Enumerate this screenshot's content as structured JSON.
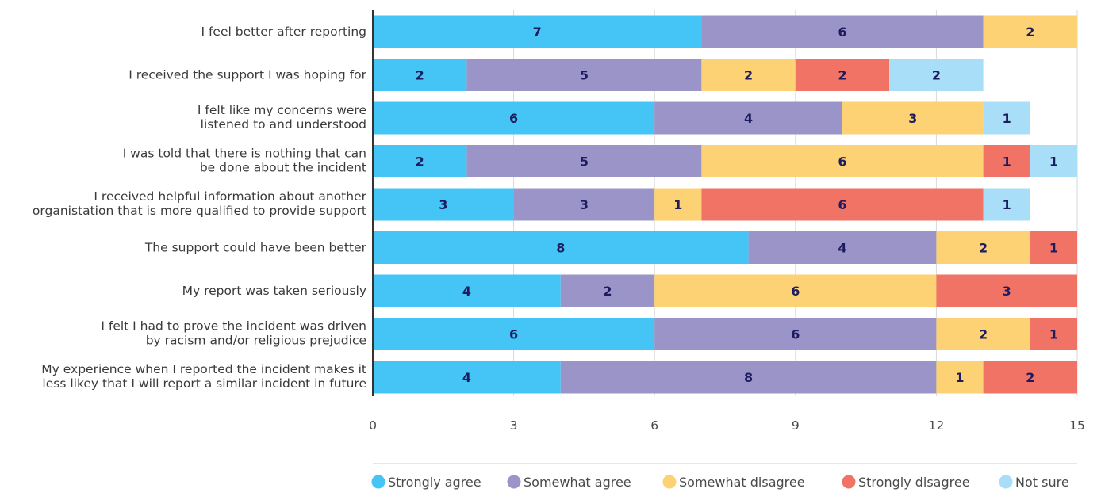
{
  "chart_data": {
    "type": "bar",
    "orientation": "horizontal",
    "stacked": true,
    "categories": [
      [
        "I feel better after reporting"
      ],
      [
        "I received the support I was hoping for"
      ],
      [
        "I felt like my concerns were",
        "listened to and understood"
      ],
      [
        "I was told that there is nothing that can",
        "be done about the incident"
      ],
      [
        "I received helpful information about another",
        "organistation that is more qualified to provide support"
      ],
      [
        "The support could have been better"
      ],
      [
        "My report was taken seriously"
      ],
      [
        "I felt I had to prove the incident was driven",
        "by racism and/or religious prejudice"
      ],
      [
        "My experience when I reported the incident makes it",
        "less likey that I will report a similar incident in future"
      ]
    ],
    "series": [
      {
        "name": "Strongly agree",
        "color": "#45C5F5",
        "values": [
          7,
          2,
          6,
          2,
          3,
          8,
          4,
          6,
          4
        ]
      },
      {
        "name": "Somewhat agree",
        "color": "#9B94C9",
        "values": [
          6,
          5,
          4,
          5,
          3,
          4,
          2,
          6,
          8
        ]
      },
      {
        "name": "Somewhat disagree",
        "color": "#FCD274",
        "values": [
          2,
          2,
          3,
          6,
          1,
          2,
          6,
          2,
          1
        ]
      },
      {
        "name": "Strongly disagree",
        "color": "#F17366",
        "values": [
          0,
          2,
          0,
          1,
          6,
          1,
          3,
          1,
          2
        ]
      },
      {
        "name": "Not sure",
        "color": "#A8DEF7",
        "values": [
          0,
          2,
          1,
          1,
          1,
          0,
          0,
          0,
          0
        ]
      }
    ],
    "xlim": [
      0,
      15
    ],
    "xticks": [
      0,
      3,
      6,
      9,
      12,
      15
    ],
    "grid": true,
    "legend_position": "bottom",
    "value_label_color": "#1c1c5e"
  }
}
